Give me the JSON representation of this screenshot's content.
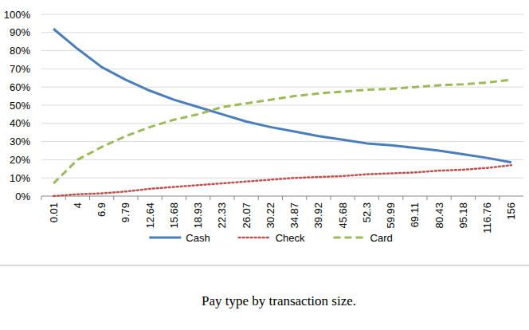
{
  "chart_data": {
    "type": "line",
    "title": "Pay type by transaction size.",
    "categories": [
      "0.01",
      "4",
      "6.9",
      "9.79",
      "12.64",
      "15.68",
      "18.93",
      "22.33",
      "26.07",
      "30.22",
      "34.87",
      "39.92",
      "45.68",
      "52.3",
      "59.99",
      "69.11",
      "80.43",
      "95.18",
      "116.76",
      "156"
    ],
    "series": [
      {
        "name": "Cash",
        "color": "#4a7ebb",
        "line_style": "solid",
        "values": [
          92,
          81,
          71,
          64,
          58,
          53,
          49,
          45,
          41,
          38,
          35.5,
          33,
          31,
          29,
          28,
          26.5,
          25,
          23,
          21,
          18.5
        ]
      },
      {
        "name": "Check",
        "color": "#c0504d",
        "line_style": "dotted",
        "values": [
          0,
          1,
          1.5,
          2.5,
          4,
          5,
          6,
          7,
          8,
          9,
          10,
          10.5,
          11,
          12,
          12.5,
          13,
          14,
          14.5,
          15.5,
          17
        ]
      },
      {
        "name": "Card",
        "color": "#9bbb59",
        "line_style": "dashed",
        "values": [
          7,
          20,
          27,
          33,
          38,
          42,
          45,
          49,
          51,
          53,
          55,
          56.5,
          57.5,
          58.5,
          59,
          60,
          61,
          61.5,
          62.5,
          64
        ]
      }
    ],
    "ylim": [
      0,
      100
    ],
    "yticks": [
      {
        "value": 0,
        "label": "0%"
      },
      {
        "value": 10,
        "label": "10%"
      },
      {
        "value": 20,
        "label": "20%"
      },
      {
        "value": 30,
        "label": "30%"
      },
      {
        "value": 40,
        "label": "40%"
      },
      {
        "value": 50,
        "label": "50%"
      },
      {
        "value": 60,
        "label": "60%"
      },
      {
        "value": 70,
        "label": "70%"
      },
      {
        "value": 80,
        "label": "80%"
      },
      {
        "value": 90,
        "label": "90%"
      },
      {
        "value": 100,
        "label": "100%"
      }
    ],
    "grid": true,
    "legend": "bottom"
  }
}
